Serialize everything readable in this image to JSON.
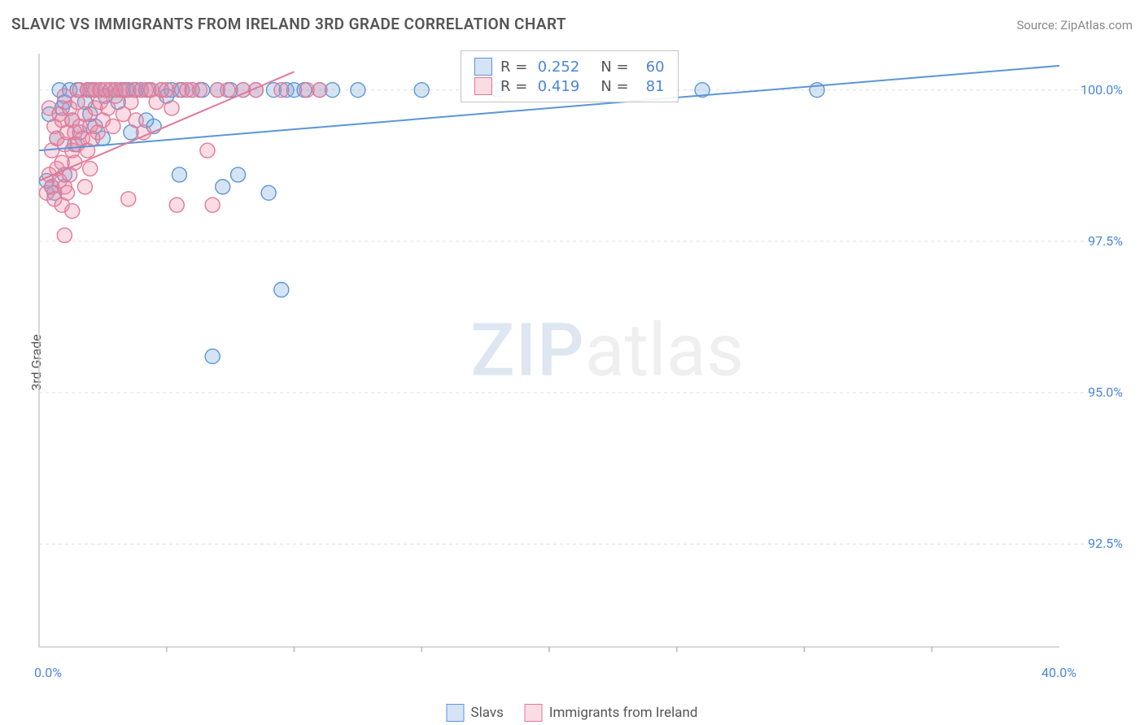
{
  "title": "SLAVIC VS IMMIGRANTS FROM IRELAND 3RD GRADE CORRELATION CHART",
  "source": "Source: ZipAtlas.com",
  "ylabel": "3rd Grade",
  "watermark": {
    "part1": "ZIP",
    "part2": "atlas"
  },
  "chart": {
    "type": "scatter",
    "xlim": [
      0,
      40
    ],
    "ylim": [
      90.8,
      100.6
    ],
    "x_tick_major": [
      0,
      40
    ],
    "x_tick_minor_step": 5,
    "y_ticks": [
      92.5,
      95.0,
      97.5,
      100.0
    ],
    "y_tick_labels": [
      "92.5%",
      "95.0%",
      "97.5%",
      "100.0%"
    ],
    "x_tick_labels": [
      "0.0%",
      "40.0%"
    ],
    "grid_color": "#e0e0e0",
    "axis_color": "#cccccc",
    "tick_color": "#bbbbbb",
    "label_color": "#4a86d8",
    "background": "#ffffff",
    "marker_radius": 9,
    "marker_stroke_width": 1.4,
    "trend_line_width": 2
  },
  "series": [
    {
      "name": "Slavs",
      "fill": "rgba(115,165,220,0.30)",
      "stroke": "#5a96d6",
      "R": "0.252",
      "N": "60",
      "trend": {
        "x1": 0,
        "y1": 99.0,
        "x2": 40,
        "y2": 100.4
      },
      "points": [
        [
          0.3,
          98.5
        ],
        [
          0.4,
          99.6
        ],
        [
          0.6,
          98.3
        ],
        [
          0.7,
          99.2
        ],
        [
          0.8,
          100.0
        ],
        [
          0.9,
          99.7
        ],
        [
          1.0,
          98.6
        ],
        [
          1.0,
          99.8
        ],
        [
          1.2,
          100.0
        ],
        [
          1.3,
          99.5
        ],
        [
          1.4,
          99.1
        ],
        [
          1.5,
          100.0
        ],
        [
          1.6,
          99.3
        ],
        [
          1.8,
          99.8
        ],
        [
          1.9,
          100.0
        ],
        [
          2.0,
          99.6
        ],
        [
          2.1,
          100.0
        ],
        [
          2.2,
          99.4
        ],
        [
          2.4,
          100.0
        ],
        [
          2.5,
          99.2
        ],
        [
          2.6,
          99.9
        ],
        [
          2.8,
          100.0
        ],
        [
          3.0,
          100.0
        ],
        [
          3.1,
          99.8
        ],
        [
          3.3,
          100.0
        ],
        [
          3.5,
          100.0
        ],
        [
          3.6,
          99.3
        ],
        [
          3.8,
          100.0
        ],
        [
          4.0,
          100.0
        ],
        [
          4.2,
          99.5
        ],
        [
          4.3,
          100.0
        ],
        [
          4.5,
          99.4
        ],
        [
          4.8,
          100.0
        ],
        [
          5.0,
          99.9
        ],
        [
          5.2,
          100.0
        ],
        [
          5.5,
          98.6
        ],
        [
          5.6,
          100.0
        ],
        [
          6.0,
          100.0
        ],
        [
          6.4,
          100.0
        ],
        [
          6.8,
          95.6
        ],
        [
          7.0,
          100.0
        ],
        [
          7.2,
          98.4
        ],
        [
          7.5,
          100.0
        ],
        [
          7.8,
          98.6
        ],
        [
          8.0,
          100.0
        ],
        [
          8.5,
          100.0
        ],
        [
          9.0,
          98.3
        ],
        [
          9.2,
          100.0
        ],
        [
          9.5,
          96.7
        ],
        [
          9.7,
          100.0
        ],
        [
          10.0,
          100.0
        ],
        [
          10.4,
          100.0
        ],
        [
          11.0,
          100.0
        ],
        [
          11.5,
          100.0
        ],
        [
          12.5,
          100.0
        ],
        [
          15.0,
          100.0
        ],
        [
          18.0,
          100.0
        ],
        [
          26.0,
          100.0
        ],
        [
          30.5,
          100.0
        ],
        [
          0.5,
          98.4
        ]
      ]
    },
    {
      "name": "Immigrants from Ireland",
      "fill": "rgba(235,140,165,0.30)",
      "stroke": "#e17a99",
      "R": "0.419",
      "N": "81",
      "trend": {
        "x1": 0,
        "y1": 98.5,
        "x2": 10,
        "y2": 100.3
      },
      "points": [
        [
          0.3,
          98.3
        ],
        [
          0.4,
          98.6
        ],
        [
          0.4,
          99.7
        ],
        [
          0.5,
          98.4
        ],
        [
          0.5,
          99.0
        ],
        [
          0.6,
          98.2
        ],
        [
          0.6,
          99.4
        ],
        [
          0.7,
          98.7
        ],
        [
          0.7,
          99.2
        ],
        [
          0.8,
          98.5
        ],
        [
          0.8,
          99.6
        ],
        [
          0.9,
          98.1
        ],
        [
          0.9,
          98.8
        ],
        [
          0.9,
          99.5
        ],
        [
          1.0,
          97.6
        ],
        [
          1.0,
          98.4
        ],
        [
          1.0,
          99.1
        ],
        [
          1.0,
          99.9
        ],
        [
          1.1,
          98.3
        ],
        [
          1.1,
          99.3
        ],
        [
          1.2,
          98.6
        ],
        [
          1.2,
          99.7
        ],
        [
          1.3,
          98.0
        ],
        [
          1.3,
          99.0
        ],
        [
          1.3,
          99.5
        ],
        [
          1.4,
          98.8
        ],
        [
          1.4,
          99.3
        ],
        [
          1.5,
          99.1
        ],
        [
          1.5,
          99.8
        ],
        [
          1.6,
          99.4
        ],
        [
          1.6,
          100.0
        ],
        [
          1.7,
          99.2
        ],
        [
          1.8,
          98.4
        ],
        [
          1.8,
          99.6
        ],
        [
          1.9,
          99.0
        ],
        [
          1.9,
          100.0
        ],
        [
          2.0,
          98.7
        ],
        [
          2.0,
          99.4
        ],
        [
          2.0,
          100.0
        ],
        [
          2.1,
          99.2
        ],
        [
          2.2,
          99.7
        ],
        [
          2.2,
          100.0
        ],
        [
          2.3,
          99.3
        ],
        [
          2.4,
          99.8
        ],
        [
          2.4,
          100.0
        ],
        [
          2.5,
          99.5
        ],
        [
          2.6,
          100.0
        ],
        [
          2.7,
          99.7
        ],
        [
          2.8,
          100.0
        ],
        [
          2.9,
          99.4
        ],
        [
          3.0,
          99.9
        ],
        [
          3.0,
          100.0
        ],
        [
          3.2,
          100.0
        ],
        [
          3.3,
          99.6
        ],
        [
          3.4,
          100.0
        ],
        [
          3.5,
          98.2
        ],
        [
          3.6,
          99.8
        ],
        [
          3.7,
          100.0
        ],
        [
          3.8,
          99.5
        ],
        [
          4.0,
          100.0
        ],
        [
          4.1,
          99.3
        ],
        [
          4.2,
          100.0
        ],
        [
          4.4,
          100.0
        ],
        [
          4.6,
          99.8
        ],
        [
          4.8,
          100.0
        ],
        [
          5.0,
          100.0
        ],
        [
          5.2,
          99.7
        ],
        [
          5.4,
          98.1
        ],
        [
          5.5,
          100.0
        ],
        [
          5.8,
          100.0
        ],
        [
          6.0,
          100.0
        ],
        [
          6.3,
          100.0
        ],
        [
          6.6,
          99.0
        ],
        [
          6.8,
          98.1
        ],
        [
          7.0,
          100.0
        ],
        [
          7.4,
          100.0
        ],
        [
          8.0,
          100.0
        ],
        [
          8.5,
          100.0
        ],
        [
          9.5,
          100.0
        ],
        [
          10.5,
          100.0
        ],
        [
          11.0,
          100.0
        ]
      ]
    }
  ],
  "stats_legend": {
    "rows": [
      {
        "swatch_fill": "rgba(115,165,220,0.30)",
        "swatch_stroke": "#5a96d6",
        "r_label": "R =",
        "r_val": "0.252",
        "n_label": "N =",
        "n_val": "60"
      },
      {
        "swatch_fill": "rgba(235,140,165,0.30)",
        "swatch_stroke": "#e17a99",
        "r_label": "R =",
        "r_val": "0.419",
        "n_label": "N =",
        "n_val": "81"
      }
    ]
  },
  "bottom_legend": [
    {
      "swatch_fill": "rgba(115,165,220,0.30)",
      "swatch_stroke": "#5a96d6",
      "label": "Slavs"
    },
    {
      "swatch_fill": "rgba(235,140,165,0.30)",
      "swatch_stroke": "#e17a99",
      "label": "Immigrants from Ireland"
    }
  ]
}
